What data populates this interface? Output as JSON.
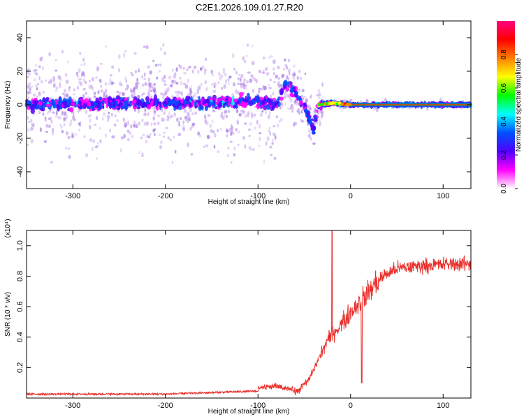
{
  "title": "C2E1.2026.109.01.27.R20",
  "colors": {
    "snr_line": "#e8302c",
    "spectrum_peak": "#ff2020",
    "spectrum_core": "#5a00e0",
    "spectrum_halo": "#c9a6ee"
  },
  "chart_data": [
    {
      "type": "heatmap",
      "name": "spectrogram",
      "xlabel": "Height of straight line (km)",
      "ylabel": "Frequency (Hz)",
      "xlim": [
        -350,
        130
      ],
      "ylim": [
        -50,
        50
      ],
      "xticks": [
        -300,
        -200,
        -100,
        0,
        100
      ],
      "yticks": [
        -40,
        -20,
        0,
        20,
        40
      ],
      "colorbar": {
        "label": "Normalized spectral amplitude",
        "range": [
          0,
          1
        ],
        "ticks": [
          "0.0",
          "0.2",
          "0.4",
          "0.6",
          "0.8"
        ],
        "colormap": [
          "#ffffff",
          "#ff00ff",
          "#5000ff",
          "#0050ff",
          "#00ffff",
          "#00ff00",
          "#ffff00",
          "#ff8000",
          "#ff0000",
          "#ff0080"
        ]
      },
      "ridge": {
        "description_points_x": [
          -350,
          -200,
          -100,
          -80,
          -70,
          -60,
          -50,
          -40,
          -35,
          -20,
          0,
          130
        ],
        "center_freq": [
          0,
          1,
          2,
          0,
          12,
          8,
          0,
          -15,
          0,
          1,
          0,
          0
        ]
      }
    },
    {
      "type": "line",
      "name": "snr",
      "xlabel": "Height of straight line (km)",
      "ylabel": "SNR (10 * v/v)",
      "yscale_label": "(x10⁴)",
      "xlim": [
        -350,
        130
      ],
      "ylim": [
        0,
        1.1
      ],
      "xticks": [
        -300,
        -200,
        -100,
        0,
        100
      ],
      "yticks": [
        "0.2",
        "0.4",
        "0.6",
        "0.8",
        "1.0"
      ],
      "trend": {
        "x": [
          -350,
          -200,
          -150,
          -100,
          -80,
          -60,
          -45,
          -35,
          -25,
          -15,
          -5,
          5,
          15,
          25,
          35,
          50,
          80,
          110,
          130
        ],
        "y": [
          0.02,
          0.02,
          0.03,
          0.04,
          0.06,
          0.03,
          0.12,
          0.25,
          0.38,
          0.45,
          0.52,
          0.6,
          0.66,
          0.74,
          0.8,
          0.85,
          0.87,
          0.88,
          0.88
        ]
      }
    }
  ]
}
